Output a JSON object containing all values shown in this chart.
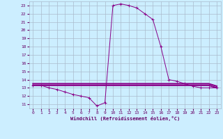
{
  "xlabel": "Windchill (Refroidissement éolien,°C)",
  "bg_color": "#cceeff",
  "grid_color": "#aabbcc",
  "line_color": "#880088",
  "xlim": [
    -0.5,
    23.5
  ],
  "ylim": [
    10.5,
    23.5
  ],
  "xticks": [
    0,
    1,
    2,
    3,
    4,
    5,
    6,
    7,
    8,
    9,
    10,
    11,
    12,
    13,
    14,
    15,
    16,
    17,
    18,
    19,
    20,
    21,
    22,
    23
  ],
  "yticks": [
    11,
    12,
    13,
    14,
    15,
    16,
    17,
    18,
    19,
    20,
    21,
    22,
    23
  ],
  "series1_x": [
    0,
    1,
    2,
    3,
    4,
    5,
    6,
    7,
    8,
    9,
    10,
    11,
    12,
    13,
    14,
    15,
    16,
    17,
    18,
    19,
    20,
    21,
    22,
    23
  ],
  "series1_y": [
    13.3,
    13.3,
    13.0,
    12.8,
    12.5,
    12.2,
    12.0,
    11.8,
    10.8,
    11.2,
    23.0,
    23.2,
    23.0,
    22.7,
    22.0,
    21.3,
    18.0,
    14.0,
    13.8,
    13.5,
    13.2,
    13.0,
    13.0,
    13.0
  ],
  "series2_x": [
    0,
    1,
    2,
    3,
    4,
    5,
    6,
    7,
    8,
    9,
    10,
    11,
    12,
    13,
    14,
    15,
    16,
    17,
    18,
    19,
    20,
    21,
    22,
    23
  ],
  "series2_y": [
    13.3,
    13.3,
    13.3,
    13.3,
    13.3,
    13.3,
    13.3,
    13.3,
    13.3,
    13.3,
    13.3,
    13.3,
    13.3,
    13.3,
    13.3,
    13.3,
    13.3,
    13.3,
    13.3,
    13.3,
    13.3,
    13.3,
    13.3,
    13.0
  ],
  "series3_x": [
    0,
    1,
    2,
    3,
    4,
    5,
    6,
    7,
    8,
    9,
    10,
    11,
    12,
    13,
    14,
    15,
    16,
    17,
    18,
    19,
    20,
    21,
    22,
    23
  ],
  "series3_y": [
    13.5,
    13.5,
    13.5,
    13.5,
    13.5,
    13.5,
    13.5,
    13.5,
    13.5,
    13.5,
    13.5,
    13.5,
    13.5,
    13.5,
    13.5,
    13.5,
    13.5,
    13.5,
    13.5,
    13.5,
    13.5,
    13.5,
    13.5,
    13.2
  ]
}
